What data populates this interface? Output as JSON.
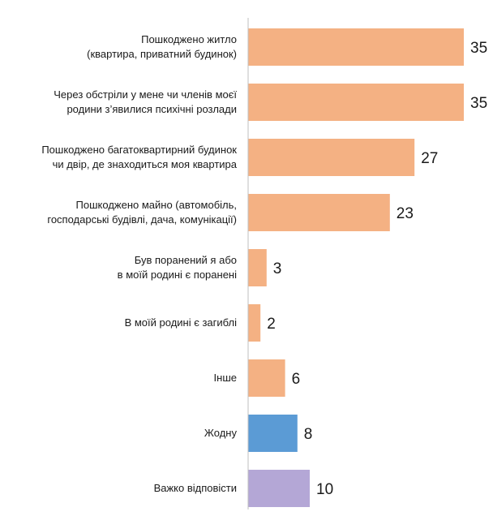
{
  "chart_data": {
    "type": "bar",
    "orientation": "horizontal",
    "title": "",
    "xlabel": "",
    "ylabel": "",
    "grid": false,
    "legend": "none",
    "categories": [
      [
        "Пошкоджено житло",
        "(квартира, приватний будинок)"
      ],
      [
        "Через обстріли у мене чи членів моєї",
        "родини з’явилися психічні розлади"
      ],
      [
        "Пошкоджено багатоквартирний будинок",
        "чи двір, де знаходиться моя квартира"
      ],
      [
        "Пошкоджено майно (автомобіль,",
        "господарські будівлі, дача, комунікації)"
      ],
      [
        "Був поранений я або",
        "в моїй родині є поранені"
      ],
      [
        "В моїй родині є загиблі"
      ],
      [
        "Інше"
      ],
      [
        "Жодну"
      ],
      [
        "Важко відповісти"
      ]
    ],
    "values": [
      35,
      35,
      27,
      23,
      3,
      2,
      6,
      8,
      10
    ],
    "bar_colors": [
      "#f4b183",
      "#f4b183",
      "#f4b183",
      "#f4b183",
      "#f4b183",
      "#f4b183",
      "#f4b183",
      "#5b9bd5",
      "#b4a7d6"
    ],
    "xlim": [
      0,
      35
    ]
  }
}
